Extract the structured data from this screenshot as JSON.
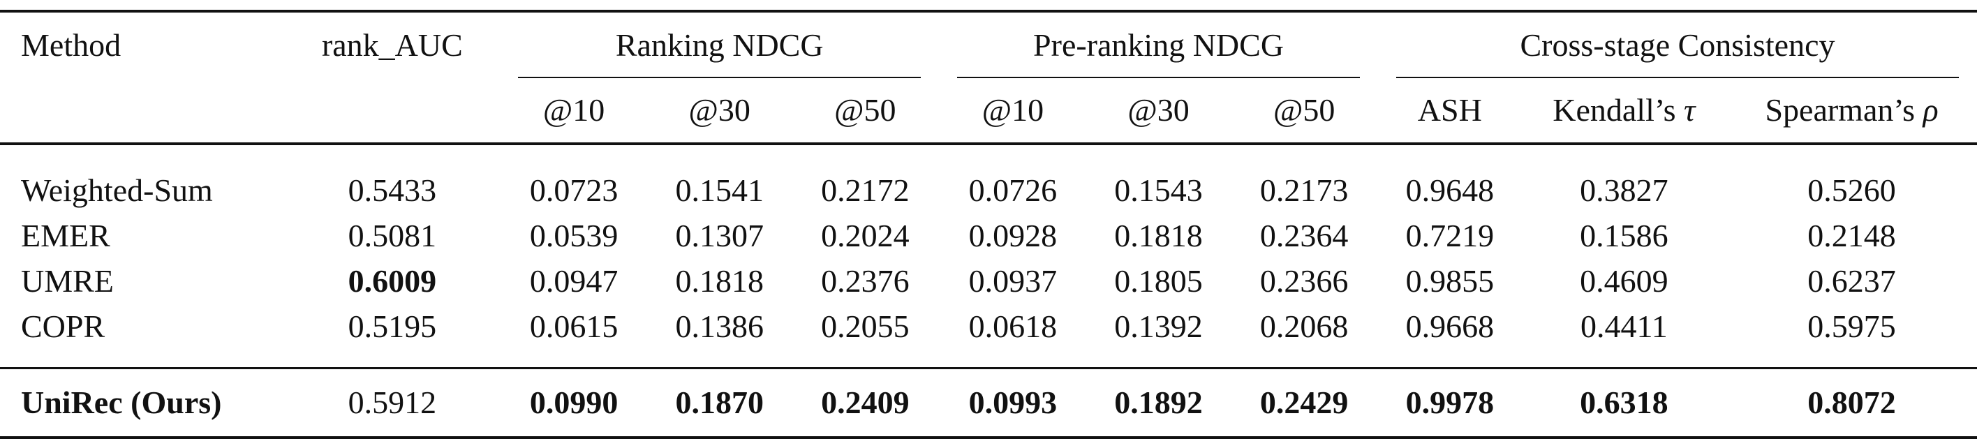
{
  "header": {
    "method": "Method",
    "rank_auc": "rank_AUC",
    "group_ranking": "Ranking NDCG",
    "group_preranking": "Pre-ranking NDCG",
    "group_cross": "Cross-stage Consistency",
    "r_at10": "@10",
    "r_at30": "@30",
    "r_at50": "@50",
    "p_at10": "@10",
    "p_at30": "@30",
    "p_at50": "@50",
    "ash": "ASH",
    "kendall_prefix": "Kendall’s ",
    "kendall_symbol": "τ",
    "spearman_prefix": "Spearman’s ",
    "spearman_symbol": "ρ"
  },
  "rows": [
    {
      "method": "Weighted-Sum",
      "rank_auc": "0.5433",
      "r10": "0.0723",
      "r30": "0.1541",
      "r50": "0.2172",
      "p10": "0.0726",
      "p30": "0.1543",
      "p50": "0.2173",
      "ash": "0.9648",
      "kendall": "0.3827",
      "spearman": "0.5260"
    },
    {
      "method": "EMER",
      "rank_auc": "0.5081",
      "r10": "0.0539",
      "r30": "0.1307",
      "r50": "0.2024",
      "p10": "0.0928",
      "p30": "0.1818",
      "p50": "0.2364",
      "ash": "0.7219",
      "kendall": "0.1586",
      "spearman": "0.2148"
    },
    {
      "method": "UMRE",
      "rank_auc": "0.6009",
      "r10": "0.0947",
      "r30": "0.1818",
      "r50": "0.2376",
      "p10": "0.0937",
      "p30": "0.1805",
      "p50": "0.2366",
      "ash": "0.9855",
      "kendall": "0.4609",
      "spearman": "0.6237"
    },
    {
      "method": "COPR",
      "rank_auc": "0.5195",
      "r10": "0.0615",
      "r30": "0.1386",
      "r50": "0.2055",
      "p10": "0.0618",
      "p30": "0.1392",
      "p50": "0.2068",
      "ash": "0.9668",
      "kendall": "0.4411",
      "spearman": "0.5975"
    },
    {
      "method": "UniRec (Ours)",
      "rank_auc": "0.5912",
      "r10": "0.0990",
      "r30": "0.1870",
      "r50": "0.2409",
      "p10": "0.0993",
      "p30": "0.1892",
      "p50": "0.2429",
      "ash": "0.9978",
      "kendall": "0.6318",
      "spearman": "0.8072"
    }
  ]
}
